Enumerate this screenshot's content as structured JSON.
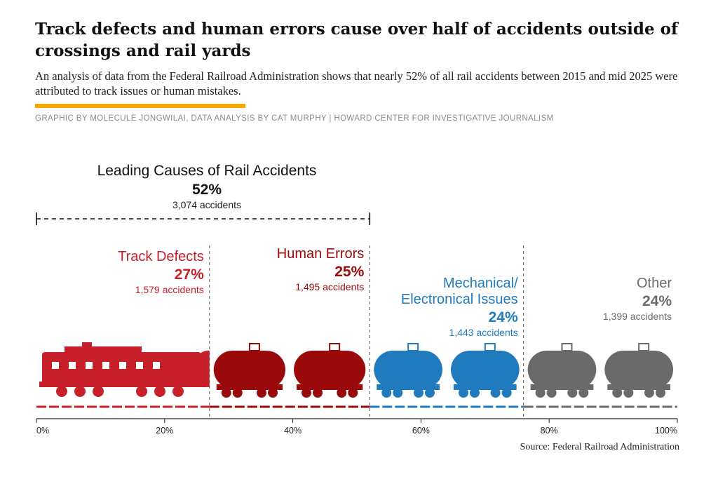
{
  "headline": "Track defects and human errors cause over half of accidents outside of crossings and rail yards",
  "subtitle": "An analysis of data from the Federal Railroad Administration shows that nearly 52% of all rail accidents between 2015 and mid 2025 were attributed to track issues or human mistakes.",
  "credit": "GRAPHIC BY MOLECULE JONGWILAI, DATA ANALYSIS BY CAT MURPHY  |  HOWARD CENTER FOR INVESTIGATIVE JOURNALISM",
  "source": "Source: Federal Railroad Administration",
  "colors": {
    "track": "#c8202a",
    "human": "#9b0a0a",
    "mechanical": "#1f7bbd",
    "other": "#6a6a6a",
    "accent": "#f5a800"
  },
  "chart_data": {
    "type": "bar",
    "orientation": "horizontal-stacked",
    "title": "Leading Causes of Rail Accidents",
    "leading_total_pct": "52%",
    "leading_total_accidents": "3,074 accidents",
    "categories": [
      {
        "name": "Track Defects",
        "name_lines": [
          "Track Defects"
        ],
        "percent": 27,
        "pct_label": "27%",
        "accidents": "1,579 accidents",
        "color": "#c8202a"
      },
      {
        "name": "Human Errors",
        "name_lines": [
          "Human Errors"
        ],
        "percent": 25,
        "pct_label": "25%",
        "accidents": "1,495 accidents",
        "color": "#9b0a0a"
      },
      {
        "name": "Mechanical/ Electronical Issues",
        "name_lines": [
          "Mechanical/",
          "Electronical Issues"
        ],
        "percent": 24,
        "pct_label": "24%",
        "accidents": "1,443 accidents",
        "color": "#1f7bbd"
      },
      {
        "name": "Other",
        "name_lines": [
          "Other"
        ],
        "percent": 24,
        "pct_label": "24%",
        "accidents": "1,399 accidents",
        "color": "#6a6a6a"
      }
    ],
    "xlim": [
      0,
      100
    ],
    "ticks": [
      "0%",
      "20%",
      "40%",
      "60%",
      "80%",
      "100%"
    ]
  }
}
